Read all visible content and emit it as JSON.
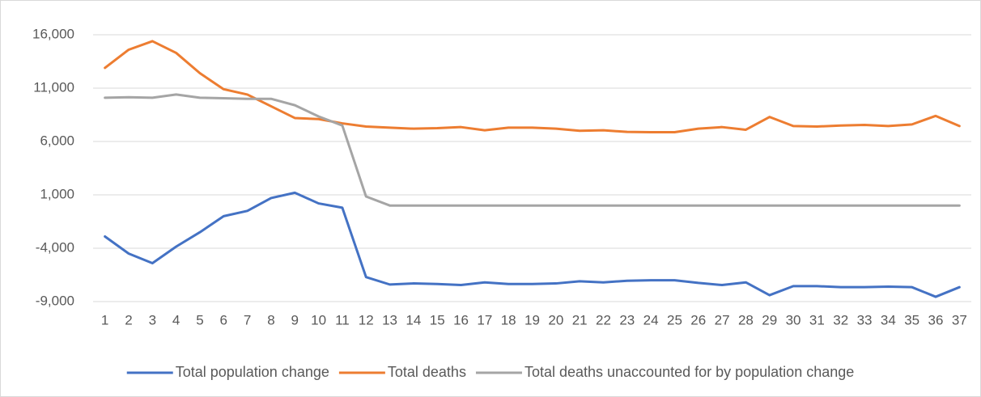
{
  "chart_data": {
    "type": "line",
    "categories": [
      "1",
      "2",
      "3",
      "4",
      "5",
      "6",
      "7",
      "8",
      "9",
      "10",
      "11",
      "12",
      "13",
      "14",
      "15",
      "16",
      "17",
      "18",
      "19",
      "20",
      "21",
      "22",
      "23",
      "24",
      "25",
      "26",
      "27",
      "28",
      "29",
      "30",
      "31",
      "32",
      "33",
      "34",
      "35",
      "36",
      "37"
    ],
    "series": [
      {
        "name": "Total population change",
        "color": "#4472c4",
        "values": [
          -2900,
          -4500,
          -5400,
          -3850,
          -2500,
          -1000,
          -500,
          700,
          1200,
          200,
          -200,
          -6700,
          -7400,
          -7300,
          -7350,
          -7450,
          -7200,
          -7350,
          -7350,
          -7300,
          -7100,
          -7200,
          -7050,
          -7000,
          -7000,
          -7250,
          -7450,
          -7200,
          -8400,
          -7550,
          -7550,
          -7650,
          -7650,
          -7600,
          -7650,
          -8550,
          -7650
        ]
      },
      {
        "name": "Total deaths",
        "color": "#ed7d31",
        "values": [
          12900,
          14600,
          15400,
          14300,
          12400,
          10900,
          10400,
          9300,
          8200,
          8100,
          7700,
          7400,
          7300,
          7200,
          7250,
          7350,
          7050,
          7300,
          7300,
          7200,
          7000,
          7050,
          6900,
          6870,
          6870,
          7200,
          7350,
          7100,
          8300,
          7450,
          7400,
          7500,
          7550,
          7450,
          7600,
          8400,
          7450
        ]
      },
      {
        "name": "Total deaths unaccounted for by population change",
        "color": "#a5a5a5",
        "values": [
          10100,
          10150,
          10100,
          10400,
          10100,
          10050,
          10000,
          10000,
          9400,
          8350,
          7500,
          850,
          0,
          0,
          0,
          0,
          0,
          0,
          0,
          0,
          0,
          0,
          0,
          0,
          0,
          0,
          0,
          0,
          0,
          0,
          0,
          0,
          0,
          0,
          0,
          0,
          0
        ]
      }
    ],
    "ylim": [
      -9000,
      16000
    ],
    "yticks": [
      {
        "value": -9000,
        "label": "-9,000"
      },
      {
        "value": -4000,
        "label": "-4,000"
      },
      {
        "value": 1000,
        "label": "1,000"
      },
      {
        "value": 6000,
        "label": "6,000"
      },
      {
        "value": 11000,
        "label": "11,000"
      },
      {
        "value": 16000,
        "label": "16,000"
      }
    ],
    "grid": true,
    "legend": "bottom"
  }
}
